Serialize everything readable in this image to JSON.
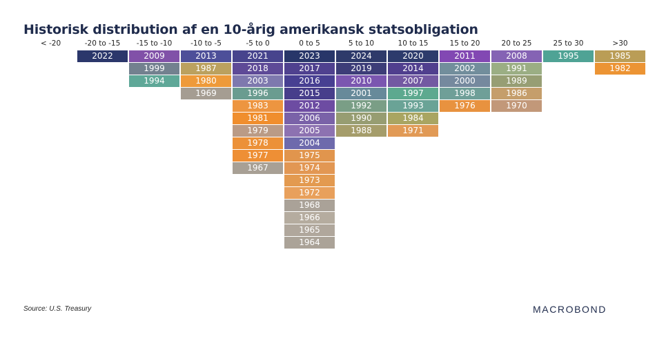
{
  "title": "Historisk distribution af en 10-årig amerikansk statsobligation",
  "source": "Source: U.S. Treasury",
  "brand": "MACROBOND",
  "chart_data": {
    "type": "table",
    "columns": [
      {
        "label": "< -20",
        "years": []
      },
      {
        "label": "-20 to -15",
        "years": [
          2022
        ]
      },
      {
        "label": "-15 to -10",
        "years": [
          2009,
          1999,
          1994
        ]
      },
      {
        "label": "-10 to -5",
        "years": [
          2013,
          1987,
          1980,
          1969
        ]
      },
      {
        "label": "-5 to 0",
        "years": [
          2021,
          2018,
          2003,
          1996,
          1983,
          1981,
          1979,
          1978,
          1977,
          1967
        ]
      },
      {
        "label": "0 to 5",
        "years": [
          2023,
          2017,
          2016,
          2015,
          2012,
          2006,
          2005,
          2004,
          1975,
          1974,
          1973,
          1972,
          1968,
          1966,
          1965,
          1964
        ]
      },
      {
        "label": "5 to 10",
        "years": [
          2024,
          2019,
          2010,
          2001,
          1992,
          1990,
          1988
        ]
      },
      {
        "label": "10 to 15",
        "years": [
          2020,
          2014,
          2007,
          1997,
          1993,
          1984,
          1971
        ]
      },
      {
        "label": "15 to 20",
        "years": [
          2011,
          2002,
          2000,
          1998,
          1976
        ]
      },
      {
        "label": "20 to 25",
        "years": [
          2008,
          1991,
          1989,
          1986,
          1970
        ]
      },
      {
        "label": "25 to 30",
        "years": [
          1995
        ]
      },
      {
        "label": ">30",
        "years": [
          1985,
          1982
        ]
      }
    ],
    "decade_colors": {
      "1960": "#ada397",
      "1970": "#e3954e",
      "1980": "#b9a25e",
      "1990": "#5ea394",
      "2000": "#7b6fa8",
      "2010": "#5a4a9a",
      "2020": "#2c3868"
    }
  }
}
